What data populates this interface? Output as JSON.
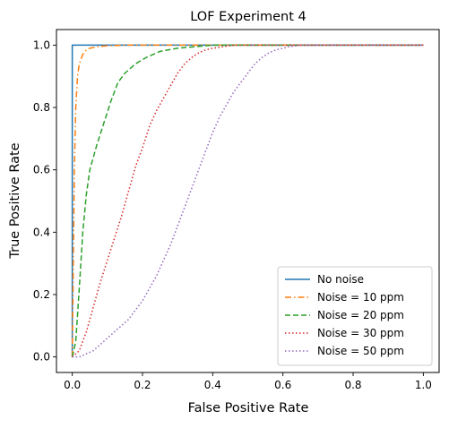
{
  "chart_data": {
    "type": "line",
    "title": "LOF Experiment 4",
    "xlabel": "False Positive Rate",
    "ylabel": "True Positive Rate",
    "xlim": [
      -0.045,
      1.045
    ],
    "ylim": [
      -0.05,
      1.05
    ],
    "xticks": [
      0.0,
      0.2,
      0.4,
      0.6,
      0.8,
      1.0
    ],
    "xtick_labels": [
      "0.0",
      "0.2",
      "0.4",
      "0.6",
      "0.8",
      "1.0"
    ],
    "yticks": [
      0.0,
      0.2,
      0.4,
      0.6,
      0.8,
      1.0
    ],
    "ytick_labels": [
      "0.0",
      "0.2",
      "0.4",
      "0.6",
      "0.8",
      "1.0"
    ],
    "grid": false,
    "legend_position": "lower-right",
    "series": [
      {
        "name": "No noise",
        "color": "#1f77b4",
        "dash": "solid",
        "x": [
          0.0,
          0.0,
          1.0
        ],
        "y": [
          0.0,
          1.0,
          1.0
        ]
      },
      {
        "name": "Noise = 10 ppm",
        "color": "#ff7f0e",
        "dash": "dashdot",
        "x": [
          0.0,
          0.003,
          0.006,
          0.01,
          0.015,
          0.02,
          0.03,
          0.04,
          0.05,
          0.07,
          0.1,
          0.15,
          0.2,
          1.0
        ],
        "y": [
          0.0,
          0.3,
          0.6,
          0.8,
          0.9,
          0.94,
          0.97,
          0.985,
          0.99,
          0.995,
          0.998,
          1.0,
          1.0,
          1.0
        ]
      },
      {
        "name": "Noise = 20 ppm",
        "color": "#2ca02c",
        "dash": "dashed",
        "x": [
          0.0,
          0.01,
          0.02,
          0.03,
          0.04,
          0.05,
          0.07,
          0.09,
          0.11,
          0.13,
          0.15,
          0.18,
          0.21,
          0.25,
          0.3,
          0.35,
          0.4,
          0.5,
          1.0
        ],
        "y": [
          0.0,
          0.05,
          0.22,
          0.4,
          0.52,
          0.6,
          0.68,
          0.75,
          0.82,
          0.88,
          0.91,
          0.94,
          0.96,
          0.98,
          0.99,
          0.995,
          1.0,
          1.0,
          1.0
        ]
      },
      {
        "name": "Noise = 30 ppm",
        "color": "#d62728",
        "dash": "dotted",
        "x": [
          0.0,
          0.02,
          0.04,
          0.06,
          0.08,
          0.1,
          0.12,
          0.14,
          0.16,
          0.18,
          0.2,
          0.22,
          0.24,
          0.26,
          0.28,
          0.3,
          0.32,
          0.34,
          0.36,
          0.38,
          0.4,
          0.43,
          0.46,
          0.5,
          0.55,
          0.6,
          1.0
        ],
        "y": [
          0.0,
          0.02,
          0.08,
          0.16,
          0.24,
          0.31,
          0.38,
          0.45,
          0.53,
          0.61,
          0.67,
          0.74,
          0.79,
          0.83,
          0.87,
          0.91,
          0.94,
          0.96,
          0.975,
          0.985,
          0.99,
          0.995,
          1.0,
          1.0,
          1.0,
          1.0,
          1.0
        ]
      },
      {
        "name": "Noise = 50 ppm",
        "color": "#9467bd",
        "dash": "dotted",
        "x": [
          0.0,
          0.02,
          0.04,
          0.06,
          0.08,
          0.1,
          0.12,
          0.14,
          0.16,
          0.18,
          0.2,
          0.22,
          0.24,
          0.26,
          0.28,
          0.3,
          0.32,
          0.34,
          0.36,
          0.38,
          0.4,
          0.42,
          0.44,
          0.46,
          0.48,
          0.5,
          0.52,
          0.54,
          0.56,
          0.58,
          0.6,
          0.62,
          0.65,
          0.7,
          1.0
        ],
        "y": [
          0.0,
          0.0,
          0.01,
          0.02,
          0.04,
          0.06,
          0.08,
          0.1,
          0.12,
          0.15,
          0.18,
          0.22,
          0.26,
          0.31,
          0.36,
          0.42,
          0.48,
          0.54,
          0.6,
          0.66,
          0.72,
          0.77,
          0.81,
          0.85,
          0.88,
          0.91,
          0.94,
          0.96,
          0.975,
          0.985,
          0.99,
          0.995,
          1.0,
          1.0,
          1.0
        ]
      }
    ]
  }
}
